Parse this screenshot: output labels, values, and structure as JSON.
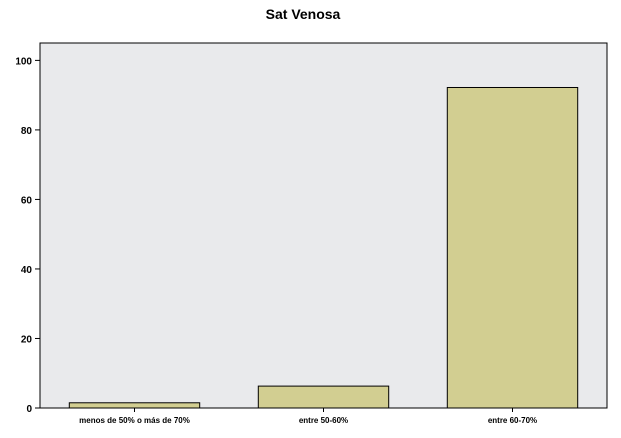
{
  "chart_data": {
    "type": "bar",
    "title": "Sat Venosa",
    "xlabel": "",
    "ylabel": "",
    "categories": [
      "menos de 50% o más de 70%",
      "entre 50-60%",
      "entre 60-70%"
    ],
    "values": [
      1.5,
      6.3,
      92.2
    ],
    "ylim": [
      0,
      105
    ],
    "yticks": [
      0,
      20,
      40,
      60,
      80,
      100
    ],
    "grid": false,
    "legend": "none",
    "colors": {
      "bar_fill": "#D2CE91",
      "bar_stroke": "#000000",
      "plot_background": "#E9EAEC",
      "page_background": "#FFFFFF"
    }
  }
}
